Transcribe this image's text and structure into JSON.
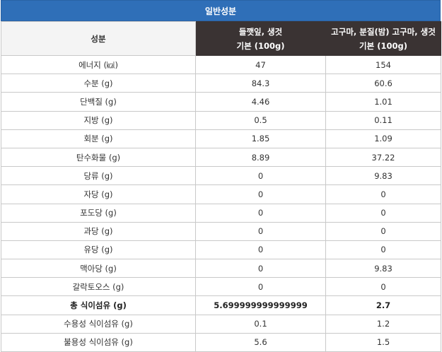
{
  "section_title": "일반성분",
  "columns": {
    "label": "성분",
    "food1_line1": "들깻잎, 생것",
    "food1_line2": "기본 (100g)",
    "food2_line1": "고구마, 분질(밤) 고구마, 생것",
    "food2_line2": "기본 (100g)"
  },
  "rows": [
    {
      "name": "에너지 (㎉)",
      "v1": "47",
      "v2": "154"
    },
    {
      "name": "수분 (g)",
      "v1": "84.3",
      "v2": "60.6"
    },
    {
      "name": "단백질 (g)",
      "v1": "4.46",
      "v2": "1.01"
    },
    {
      "name": "지방 (g)",
      "v1": "0.5",
      "v2": "0.11"
    },
    {
      "name": "회분 (g)",
      "v1": "1.85",
      "v2": "1.09"
    },
    {
      "name": "탄수화물 (g)",
      "v1": "8.89",
      "v2": "37.22"
    },
    {
      "name": "당류 (g)",
      "v1": "0",
      "v2": "9.83"
    },
    {
      "name": "자당 (g)",
      "v1": "0",
      "v2": "0"
    },
    {
      "name": "포도당 (g)",
      "v1": "0",
      "v2": "0"
    },
    {
      "name": "과당 (g)",
      "v1": "0",
      "v2": "0"
    },
    {
      "name": "유당 (g)",
      "v1": "0",
      "v2": "0"
    },
    {
      "name": "맥아당 (g)",
      "v1": "0",
      "v2": "9.83"
    },
    {
      "name": "갈락토오스 (g)",
      "v1": "0",
      "v2": "0"
    },
    {
      "name": "총 식이섬유 (g)",
      "v1": "5.699999999999999",
      "v2": "2.7"
    },
    {
      "name": "수용성 식이섬유 (g)",
      "v1": "0.1",
      "v2": "1.2"
    },
    {
      "name": "불용성 식이섬유 (g)",
      "v1": "5.6",
      "v2": "1.5"
    }
  ],
  "colors": {
    "title_bg": "#2f6fb8",
    "header_dark_bg": "#3a3333",
    "border": "#c9c9c9"
  }
}
